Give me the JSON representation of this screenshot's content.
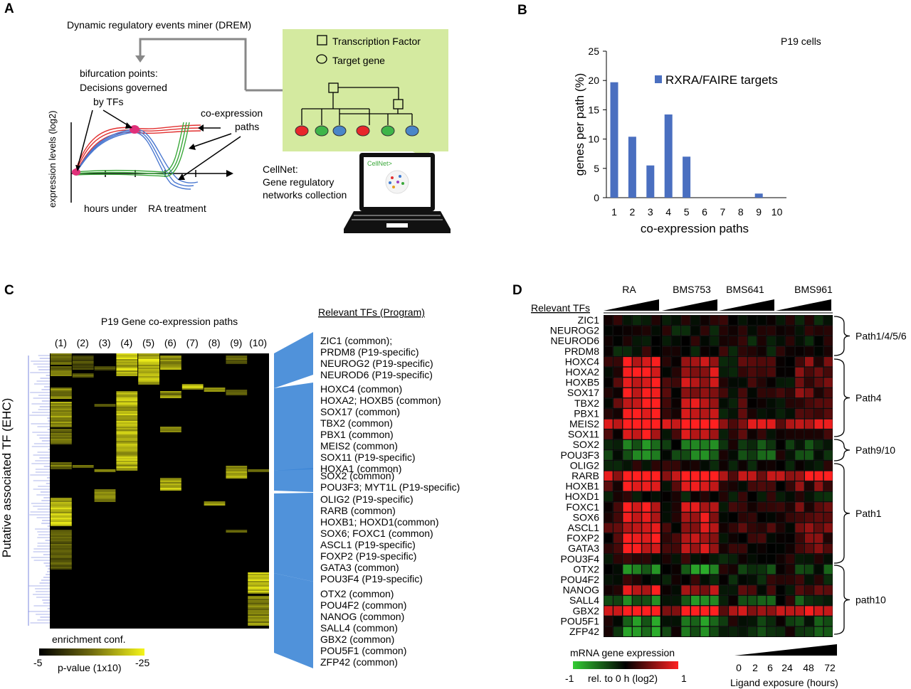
{
  "panel_labels": {
    "a": "A",
    "b": "B",
    "c": "C",
    "d": "D"
  },
  "panel_a": {
    "drem_title": "Dynamic regulatory events miner (DREM)",
    "legend_tf": "Transcription Factor",
    "legend_target": "Target gene",
    "bifurcation": [
      "bifurcation points:",
      "Decisions governed",
      "by TFs"
    ],
    "coexpr": [
      "co-expression",
      "paths"
    ],
    "ylabel": "expression levels (log2)",
    "xlabel_1": "hours under",
    "xlabel_2": "RA treatment",
    "cellnet": [
      "CellNet:",
      "Gene regulatory",
      "networks collection"
    ],
    "screen_text": "CellNet>",
    "colors": {
      "green_box": "#d4eaa0",
      "red": "#e8262b",
      "green": "#3fb549",
      "blue": "#4a86c8"
    }
  },
  "chart_data": {
    "type": "bar",
    "note": "P19 cells",
    "categories": [
      "1",
      "2",
      "3",
      "4",
      "5",
      "6",
      "7",
      "8",
      "9",
      "10"
    ],
    "series": [
      {
        "name": "RXRA/FAIRE targets",
        "values": [
          19.7,
          10.4,
          5.5,
          14.2,
          7.0,
          0,
          0,
          0,
          0.7,
          0
        ],
        "color": "#4a6fc0"
      }
    ],
    "yticks": [
      "0",
      "5",
      "10",
      "15",
      "20",
      "25"
    ],
    "xlabel": "co-expression paths",
    "ylabel": "genes per path (%)",
    "ylim": [
      0,
      25
    ]
  },
  "panel_c": {
    "title": "P19 Gene co-expression paths",
    "path_labels": [
      "(1)",
      "(2)",
      "(3)",
      "(4)",
      "(5)",
      "(6)",
      "(7)",
      "(8)",
      "(9)",
      "(10)"
    ],
    "ylabel": "Putative associated TF (EHC)",
    "tf_header": "Relevant TFs (Program)",
    "tf_list": [
      "ZIC1 (common);",
      "PRDM8 (P19-specific)",
      "NEUROG2 (P19-specific)",
      "NEUROD6 (P19-specific)",
      "HOXC4 (common)",
      "HOXA2; HOXB5 (common)",
      "SOX17 (common)",
      "TBX2 (common)",
      "PBX1 (common)",
      "MEIS2 (common)",
      "SOX11 (P19-specific)",
      "HOXA1 (common)",
      "SOX2 (common)",
      "POU3F3; MYT1L (P19-specific)",
      "OLIG2 (P19-specific)",
      "RARB (common)",
      "HOXB1; HOXD1(common)",
      "SOX6; FOXC1 (common)",
      "ASCL1 (P19-specific)",
      "FOXP2 (P19-specific)",
      "GATA3 (common)",
      "POU3F4 (P19-specific)",
      "OTX2 (common)",
      "POU4F2 (common)",
      "NANOG (common)",
      "SALL4 (common)",
      "GBX2 (common)",
      "POU5F1 (common)",
      "ZFP42 (common)"
    ],
    "scale_title": "enrichment conf.",
    "scale_min": "-5",
    "scale_max": "-25",
    "scale_label": "p-value (1x10)",
    "colors": {
      "low": "#000000",
      "high": "#f5f51a",
      "tree": "#5a6ad8",
      "wedge": "#3d86d6"
    }
  },
  "panel_d": {
    "treatments": [
      "RA",
      "BMS753",
      "BMS641",
      "BMS961"
    ],
    "tf_header": "Relevant TFs",
    "genes": [
      "ZIC1",
      "NEUROG2",
      "NEUROD6",
      "PRDM8",
      "HOXC4",
      "HOXA2",
      "HOXB5",
      "SOX17",
      "TBX2",
      "PBX1",
      "MEIS2",
      "SOX11",
      "SOX2",
      "POU3F3",
      "OLIG2",
      "RARB",
      "HOXB1",
      "HOXD1",
      "FOXC1",
      "SOX6",
      "ASCL1",
      "FOXP2",
      "GATA3",
      "POU3F4",
      "OTX2",
      "POU4F2",
      "NANOG",
      "SALL4",
      "GBX2",
      "POU5F1",
      "ZFP42"
    ],
    "groups": [
      "Path1/4/5/6",
      "Path4",
      "Path9/10",
      "Path1",
      "path10"
    ],
    "legend_title": "mRNA gene expression",
    "legend_min": "-1",
    "legend_mid": "rel. to 0 h (log2)",
    "legend_max": "1",
    "time_ticks": [
      "0",
      "2",
      "6",
      "24",
      "48",
      "72"
    ],
    "time_label": "Ligand exposure (hours)",
    "colors": {
      "up": "#ff2020",
      "down": "#33cc33",
      "zero": "#000000"
    }
  }
}
